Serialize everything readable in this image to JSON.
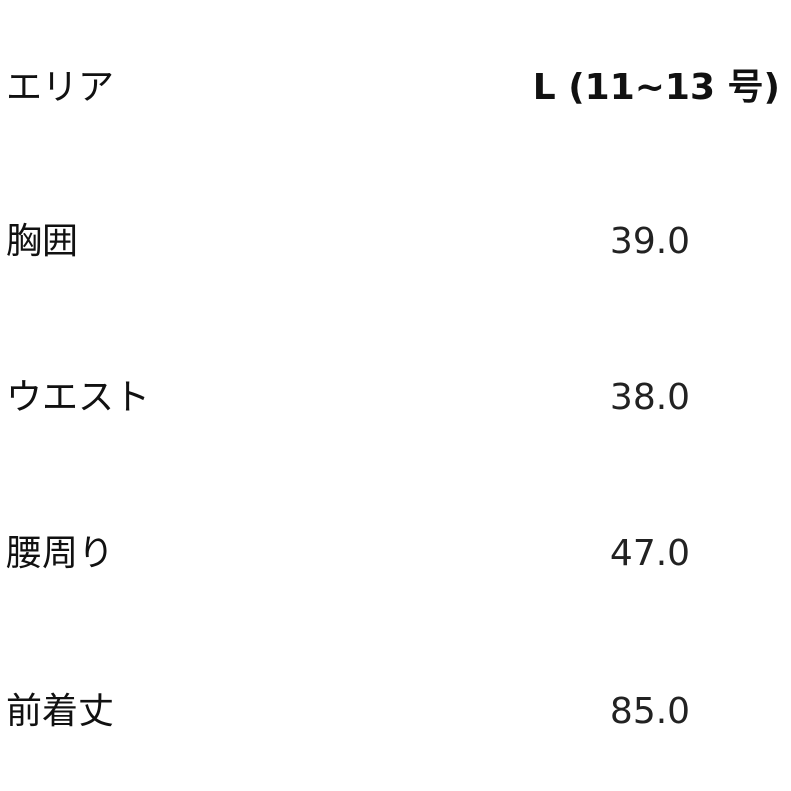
{
  "header": {
    "area": "エリア",
    "size": "L (11~13 号)"
  },
  "rows": [
    {
      "label": "胸囲",
      "value": "39.0"
    },
    {
      "label": "ウエスト",
      "value": "38.0"
    },
    {
      "label": "腰周り",
      "value": "47.0"
    },
    {
      "label": "前着丈",
      "value": "85.0"
    }
  ]
}
